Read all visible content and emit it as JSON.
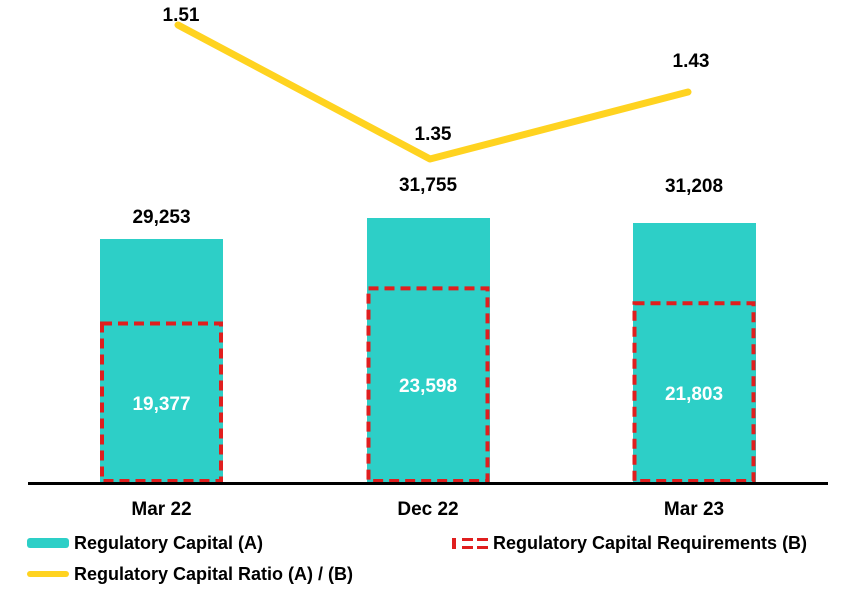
{
  "chart_data": {
    "type": "bar",
    "combo": [
      "bar",
      "dashed-outline-bar",
      "line"
    ],
    "title": "",
    "categories": [
      "Mar 22",
      "Dec 22",
      "Mar 23"
    ],
    "series": [
      {
        "name": "Regulatory Capital (A)",
        "render": "bar",
        "color": "#2DCFC7",
        "values": [
          29253,
          31755,
          31208
        ],
        "value_labels": [
          "29,253",
          "31,755",
          "31,208"
        ],
        "label_position": "above bar",
        "label_color": "#000000"
      },
      {
        "name": "Regulatory Capital Requirements (B)",
        "render": "dashed-outline-bar",
        "color": "#E01E1E",
        "values": [
          19377,
          23598,
          21803
        ],
        "value_labels": [
          "19,377",
          "23,598",
          "21,803"
        ],
        "label_position": "inside center",
        "label_color": "#FFFFFF"
      },
      {
        "name": "Regulatory Capital Ratio (A) / (B)",
        "render": "line",
        "axis": "secondary",
        "color": "#FFD320",
        "values": [
          1.51,
          1.35,
          1.43
        ],
        "value_labels": [
          "1.51",
          "1.35",
          "1.43"
        ],
        "label_position": "above point",
        "label_color": "#000000"
      }
    ],
    "axes": {
      "x": {
        "tick_labels": [
          "Mar 22",
          "Dec 22",
          "Mar 23"
        ],
        "axis_line_color": "#000000"
      },
      "y_primary": {
        "visible": false
      },
      "y_secondary": {
        "visible": false
      }
    },
    "gridlines": false,
    "legend_position": "bottom",
    "background_color": "#FFFFFF"
  }
}
